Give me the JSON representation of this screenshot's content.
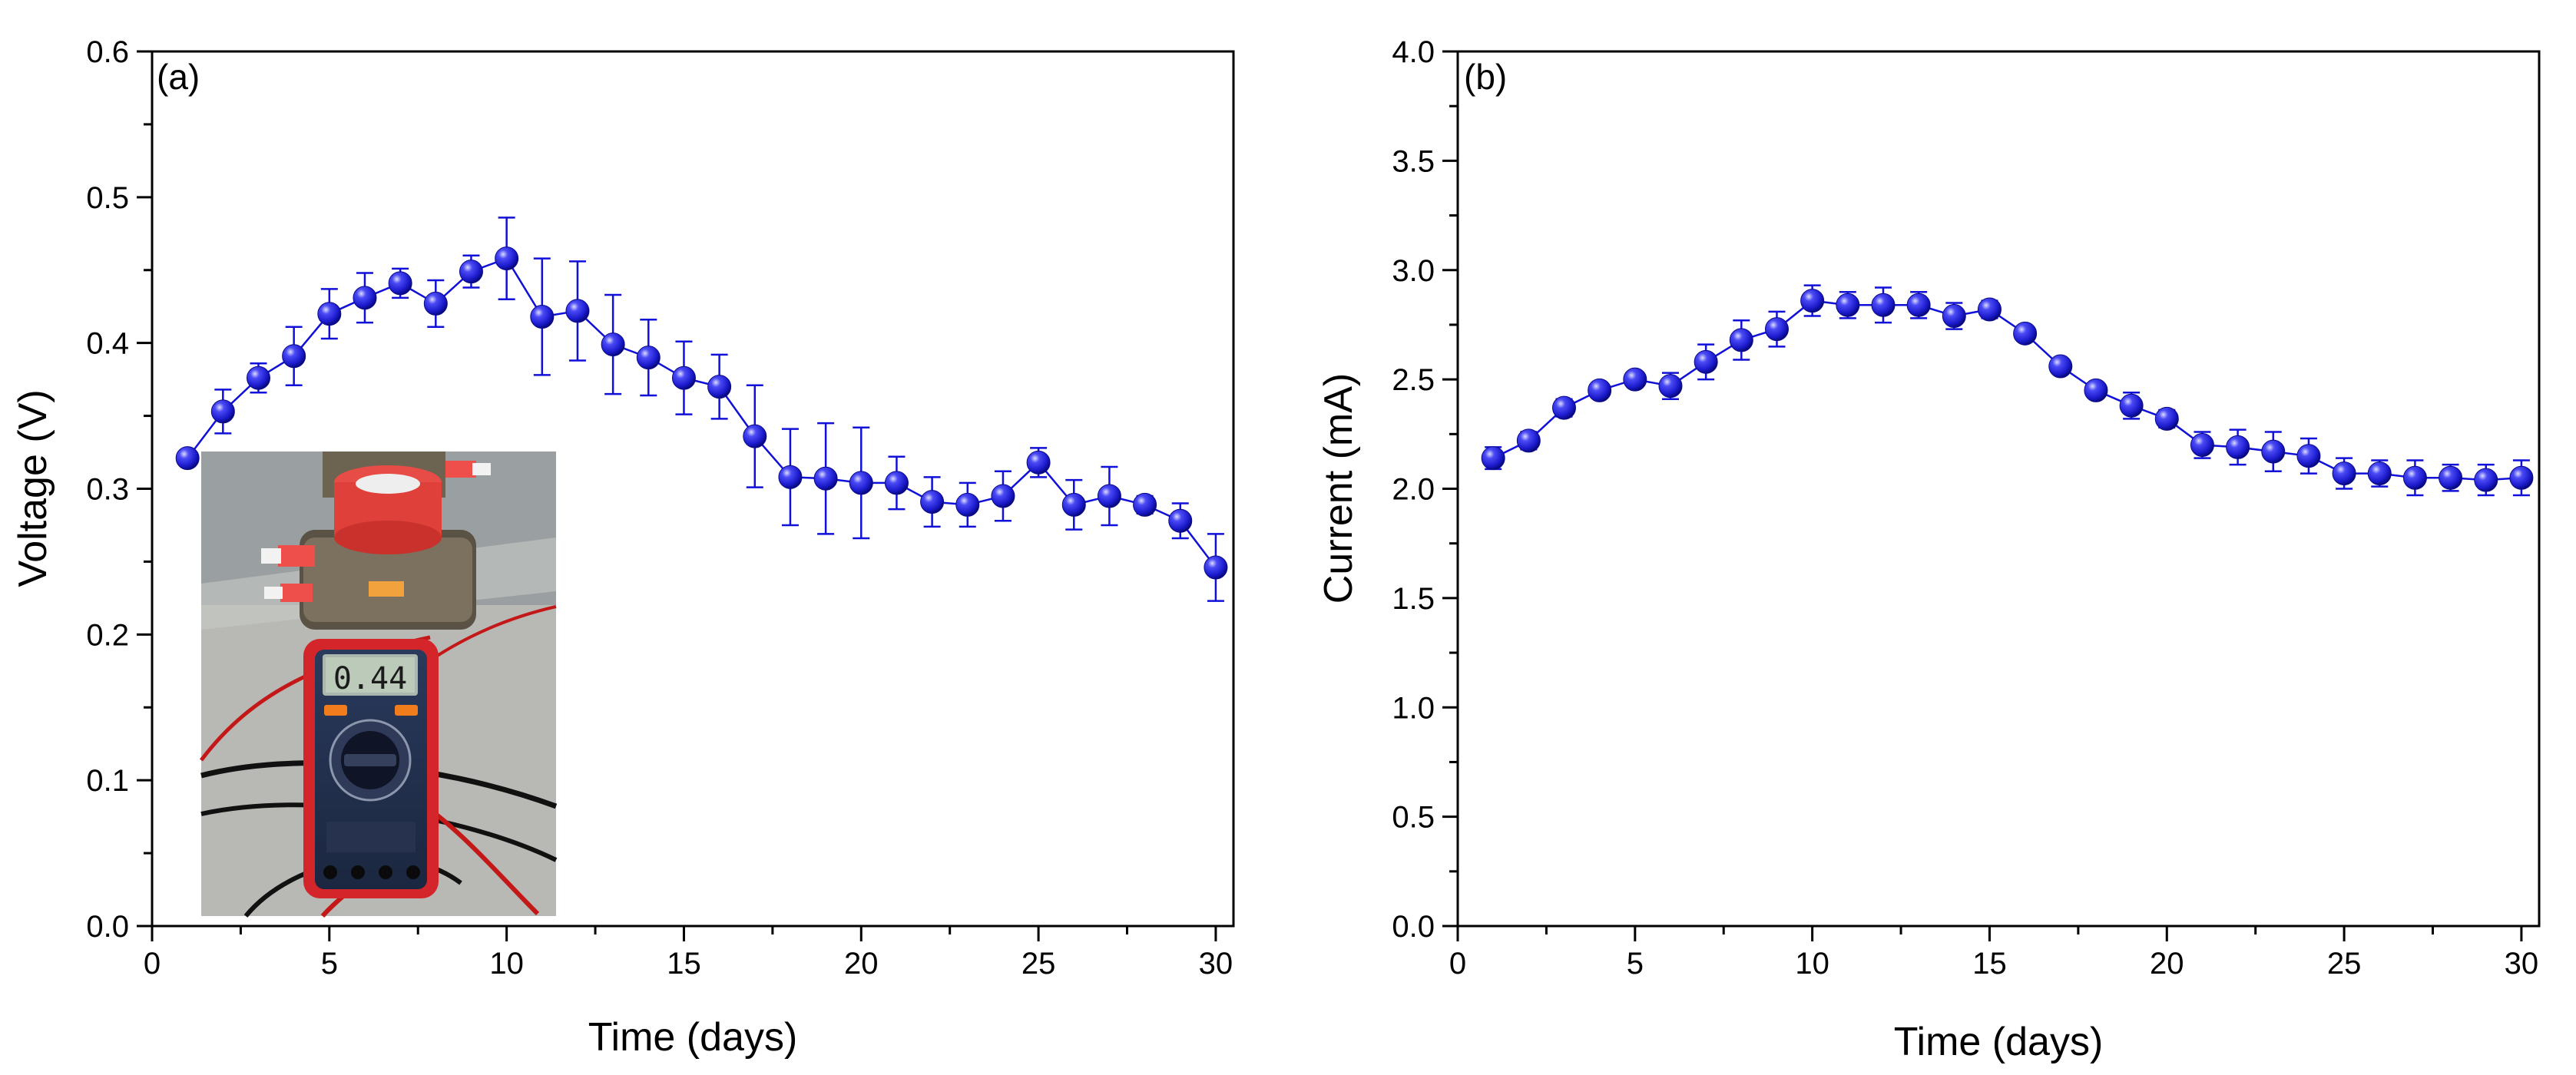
{
  "chart_data": [
    {
      "type": "line",
      "panel_label": "(a)",
      "xlabel": "Time (days)",
      "ylabel": "Voltage (V)",
      "xlim": [
        0,
        30.5
      ],
      "ylim": [
        0.0,
        0.6
      ],
      "xticks": [
        "0",
        "5",
        "10",
        "15",
        "20",
        "25",
        "30"
      ],
      "xtick_values": [
        0,
        5,
        10,
        15,
        20,
        25,
        30
      ],
      "yticks": [
        "0.0",
        "0.1",
        "0.2",
        "0.3",
        "0.4",
        "0.5",
        "0.6"
      ],
      "ytick_values": [
        0.0,
        0.1,
        0.2,
        0.3,
        0.4,
        0.5,
        0.6
      ],
      "color": "#1010d8",
      "has_inset_photo": true,
      "inset_display_reading": "0.44",
      "x": [
        1,
        2,
        3,
        4,
        5,
        6,
        7,
        8,
        9,
        10,
        11,
        12,
        13,
        14,
        15,
        16,
        17,
        18,
        19,
        20,
        21,
        22,
        23,
        24,
        25,
        26,
        27,
        28,
        29,
        30
      ],
      "y": [
        0.321,
        0.353,
        0.376,
        0.391,
        0.42,
        0.431,
        0.441,
        0.427,
        0.449,
        0.458,
        0.418,
        0.422,
        0.399,
        0.39,
        0.376,
        0.37,
        0.336,
        0.308,
        0.307,
        0.304,
        0.304,
        0.291,
        0.289,
        0.295,
        0.318,
        0.289,
        0.295,
        0.289,
        0.278,
        0.246
      ],
      "err": [
        0.004,
        0.015,
        0.01,
        0.02,
        0.017,
        0.017,
        0.01,
        0.016,
        0.011,
        0.028,
        0.04,
        0.034,
        0.034,
        0.026,
        0.025,
        0.022,
        0.035,
        0.033,
        0.038,
        0.038,
        0.018,
        0.017,
        0.015,
        0.017,
        0.01,
        0.017,
        0.02,
        0.006,
        0.012,
        0.023
      ]
    },
    {
      "type": "line",
      "panel_label": "(b)",
      "xlabel": "Time (days)",
      "ylabel": "Current (mA)",
      "xlim": [
        0,
        30.5
      ],
      "ylim": [
        0.0,
        4.0
      ],
      "xticks": [
        "0",
        "5",
        "10",
        "15",
        "20",
        "25",
        "30"
      ],
      "xtick_values": [
        0,
        5,
        10,
        15,
        20,
        25,
        30
      ],
      "yticks": [
        "0.0",
        "0.5",
        "1.0",
        "1.5",
        "2.0",
        "2.5",
        "3.0",
        "3.5",
        "4.0"
      ],
      "ytick_values": [
        0.0,
        0.5,
        1.0,
        1.5,
        2.0,
        2.5,
        3.0,
        3.5,
        4.0
      ],
      "color": "#1010d8",
      "x": [
        1,
        2,
        3,
        4,
        5,
        6,
        7,
        8,
        9,
        10,
        11,
        12,
        13,
        14,
        15,
        16,
        17,
        18,
        19,
        20,
        21,
        22,
        23,
        24,
        25,
        26,
        27,
        28,
        29,
        30
      ],
      "y": [
        2.14,
        2.22,
        2.37,
        2.45,
        2.5,
        2.47,
        2.58,
        2.68,
        2.73,
        2.86,
        2.84,
        2.84,
        2.84,
        2.79,
        2.82,
        2.71,
        2.56,
        2.45,
        2.38,
        2.32,
        2.2,
        2.19,
        2.17,
        2.15,
        2.07,
        2.07,
        2.05,
        2.05,
        2.04,
        2.05
      ],
      "err": [
        0.05,
        0.04,
        0.04,
        0.03,
        0.03,
        0.06,
        0.08,
        0.09,
        0.08,
        0.07,
        0.06,
        0.08,
        0.06,
        0.06,
        0.04,
        0.03,
        0.03,
        0.03,
        0.06,
        0.04,
        0.06,
        0.08,
        0.09,
        0.08,
        0.07,
        0.06,
        0.08,
        0.06,
        0.07,
        0.08
      ]
    }
  ]
}
